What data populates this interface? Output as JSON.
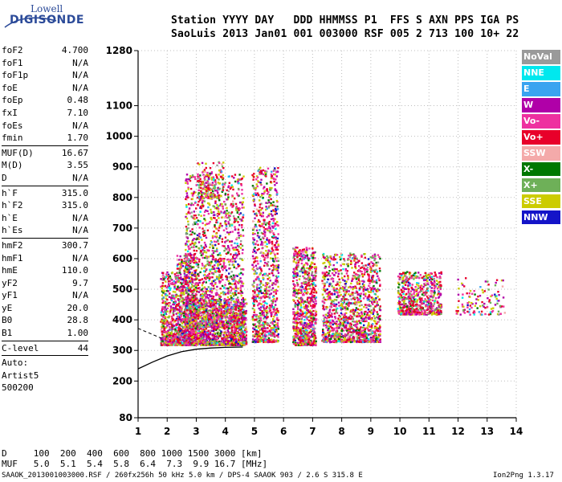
{
  "logo": {
    "top": "Lowell",
    "main": "DIGISONDE"
  },
  "header": {
    "line1": "Station YYYY DAY   DDD HHMMSS P1  FFS S AXN PPS IGA PS",
    "line2": "SaoLuis 2013 Jan01 001 003000 RSF 005 2 713 100 10+ 22"
  },
  "params": {
    "group1": [
      {
        "name": "foF2",
        "value": "4.700"
      },
      {
        "name": "foF1",
        "value": "N/A"
      },
      {
        "name": "foF1p",
        "value": "N/A"
      },
      {
        "name": "foE",
        "value": "N/A"
      },
      {
        "name": "foEp",
        "value": "0.48"
      },
      {
        "name": "fxI",
        "value": "7.10"
      },
      {
        "name": "foEs",
        "value": "N/A"
      },
      {
        "name": "fmin",
        "value": "1.70"
      }
    ],
    "group2": [
      {
        "name": "MUF(D)",
        "value": "16.67"
      },
      {
        "name": "M(D)",
        "value": "3.55"
      },
      {
        "name": "D",
        "value": "N/A"
      }
    ],
    "group3": [
      {
        "name": "h`F",
        "value": "315.0"
      },
      {
        "name": "h`F2",
        "value": "315.0"
      },
      {
        "name": "h`E",
        "value": "N/A"
      },
      {
        "name": "h`Es",
        "value": "N/A"
      }
    ],
    "group4": [
      {
        "name": "hmF2",
        "value": "300.7"
      },
      {
        "name": "hmF1",
        "value": "N/A"
      },
      {
        "name": "hmE",
        "value": "110.0"
      },
      {
        "name": "yF2",
        "value": "9.7"
      },
      {
        "name": "yF1",
        "value": "N/A"
      },
      {
        "name": "yE",
        "value": "20.0"
      },
      {
        "name": "B0",
        "value": "28.8"
      },
      {
        "name": "B1",
        "value": "1.00"
      }
    ],
    "clevel": {
      "name": "C-level",
      "value": "44"
    },
    "auto": [
      "Auto:",
      "Artist5",
      "500200"
    ]
  },
  "legend": [
    {
      "label": "NoVal",
      "color": "#9a9a9a"
    },
    {
      "label": "NNE",
      "color": "#00e8ee"
    },
    {
      "label": "E",
      "color": "#3aa4f0"
    },
    {
      "label": "W",
      "color": "#b000a8"
    },
    {
      "label": "Vo-",
      "color": "#ee30a0"
    },
    {
      "label": "Vo+",
      "color": "#e8002a"
    },
    {
      "label": "SSW",
      "color": "#f4aaaa"
    },
    {
      "label": "X-",
      "color": "#007800"
    },
    {
      "label": "X+",
      "color": "#6eb058"
    },
    {
      "label": "SSE",
      "color": "#cccc00"
    },
    {
      "label": "NNW",
      "color": "#1414c8"
    }
  ],
  "bottom": {
    "d_row": "D     100  200  400  600  800 1000 1500 3000 [km]",
    "muf_row": "MUF   5.0  5.1  5.4  5.8  6.4  7.3  9.9 16.7 [MHz]",
    "footer": "SAAOK_2013001003000.RSF / 260fx256h 50 kHz 5.0 km / DPS-4 SAAOK 903 / 2.6 S 315.8 E",
    "version": "Ion2Png 1.3.17"
  },
  "chart_data": {
    "type": "scatter",
    "xlim": [
      1,
      14
    ],
    "ylim": [
      80,
      1280
    ],
    "x_ticks": [
      "1",
      "2",
      "3",
      "4",
      "5",
      "6",
      "7",
      "8",
      "9",
      "10",
      "11",
      "12",
      "13",
      "14"
    ],
    "y_ticks": [
      "80",
      "200",
      "300",
      "400",
      "500",
      "600",
      "700",
      "800",
      "900",
      "1000",
      "1100",
      "1280"
    ],
    "x_tick_values": [
      1,
      2,
      3,
      4,
      5,
      6,
      7,
      8,
      9,
      10,
      11,
      12,
      13,
      14
    ],
    "y_tick_values": [
      80,
      200,
      300,
      400,
      500,
      600,
      700,
      800,
      900,
      1000,
      1100,
      1280
    ],
    "grid": true,
    "legend_position": "right",
    "clusters": [
      {
        "x": [
          1.75,
          2.3
        ],
        "y": [
          320,
          560
        ],
        "n": 420
      },
      {
        "x": [
          2.3,
          3.0
        ],
        "y": [
          320,
          620
        ],
        "n": 700
      },
      {
        "x": [
          2.6,
          4.6
        ],
        "y": [
          380,
          880
        ],
        "n": 1500
      },
      {
        "x": [
          2.6,
          4.7
        ],
        "y": [
          320,
          470
        ],
        "n": 1300
      },
      {
        "x": [
          4.9,
          5.8
        ],
        "y": [
          330,
          900
        ],
        "n": 900
      },
      {
        "x": [
          6.3,
          7.1
        ],
        "y": [
          320,
          640
        ],
        "n": 800
      },
      {
        "x": [
          7.3,
          9.3
        ],
        "y": [
          330,
          620
        ],
        "n": 1300
      },
      {
        "x": [
          9.9,
          11.4
        ],
        "y": [
          420,
          560
        ],
        "n": 650
      },
      {
        "x": [
          11.9,
          13.6
        ],
        "y": [
          420,
          540
        ],
        "n": 120
      },
      {
        "x": [
          3.0,
          3.9
        ],
        "y": [
          800,
          920
        ],
        "n": 160
      }
    ],
    "curve": [
      [
        1.0,
        240
      ],
      [
        1.5,
        262
      ],
      [
        2.0,
        282
      ],
      [
        2.5,
        296
      ],
      [
        3.0,
        304
      ],
      [
        3.5,
        308
      ],
      [
        4.0,
        310
      ],
      [
        4.6,
        311
      ]
    ],
    "curve2": [
      [
        1.0,
        372
      ],
      [
        1.5,
        352
      ],
      [
        1.8,
        340
      ]
    ]
  }
}
